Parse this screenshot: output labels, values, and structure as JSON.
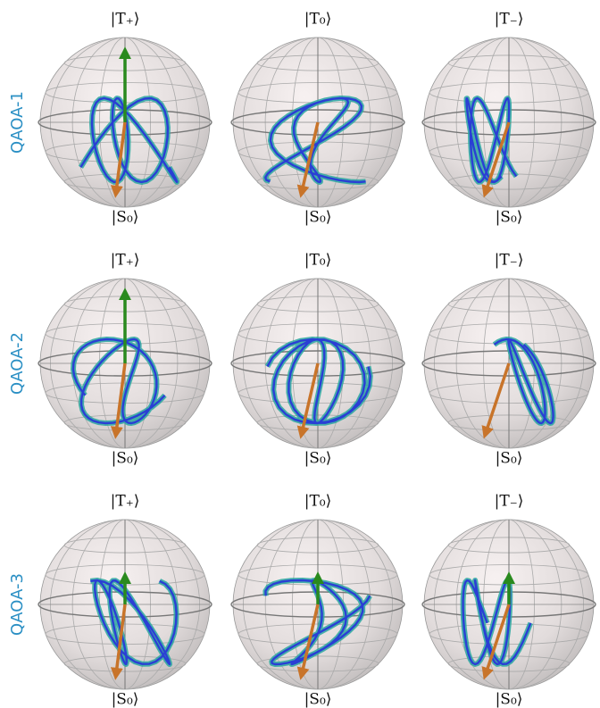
{
  "rows": [
    {
      "label": "QAOA-1",
      "spheres": [
        {
          "top": "|T₊⟩",
          "bottom": "|S₀⟩"
        },
        {
          "top": "|T₀⟩",
          "bottom": "|S₀⟩"
        },
        {
          "top": "|T₋⟩",
          "bottom": "|S₀⟩"
        }
      ]
    },
    {
      "label": "QAOA-2",
      "spheres": [
        {
          "top": "|T₊⟩",
          "bottom": "|S₀⟩"
        },
        {
          "top": "|T₀⟩",
          "bottom": "|S₀⟩"
        },
        {
          "top": "|T₋⟩",
          "bottom": "|S₀⟩"
        }
      ]
    },
    {
      "label": "QAOA-3",
      "spheres": [
        {
          "top": "|T₊⟩",
          "bottom": "|S₀⟩"
        },
        {
          "top": "|T₀⟩",
          "bottom": "|S₀⟩"
        },
        {
          "top": "|T₋⟩",
          "bottom": "|S₀⟩"
        }
      ]
    }
  ]
}
